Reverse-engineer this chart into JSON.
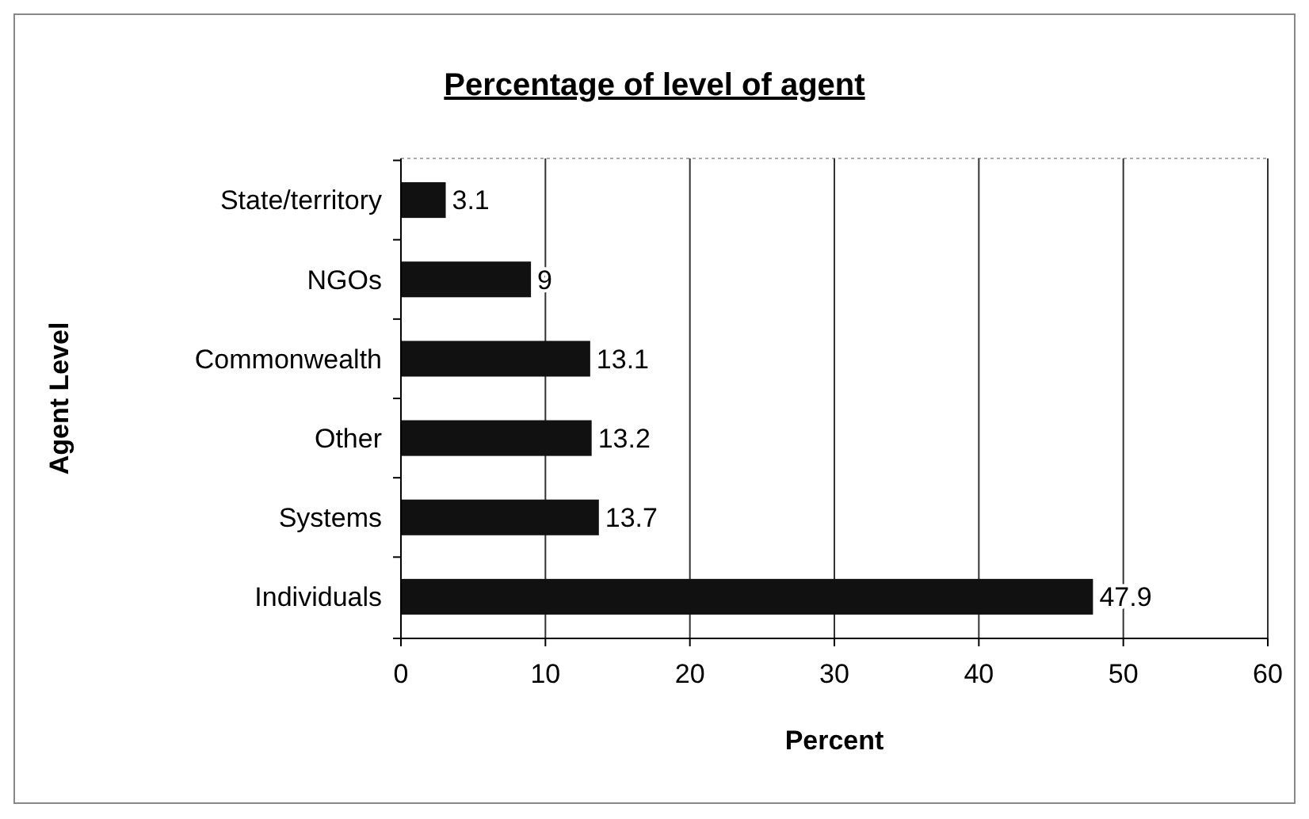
{
  "chart_data": {
    "type": "bar",
    "orientation": "horizontal",
    "title": "Percentage of level of agent",
    "xlabel": "Percent",
    "ylabel": "Agent Level",
    "categories": [
      "State/territory",
      "NGOs",
      "Commonwealth",
      "Other",
      "Systems",
      "Individuals"
    ],
    "values": [
      3.1,
      9,
      13.1,
      13.2,
      13.7,
      47.9
    ],
    "color": "#111111",
    "xlim": [
      0,
      60
    ],
    "xticks": [
      0,
      10,
      20,
      30,
      40,
      50,
      60
    ],
    "grid": "x",
    "data_labels": true
  }
}
